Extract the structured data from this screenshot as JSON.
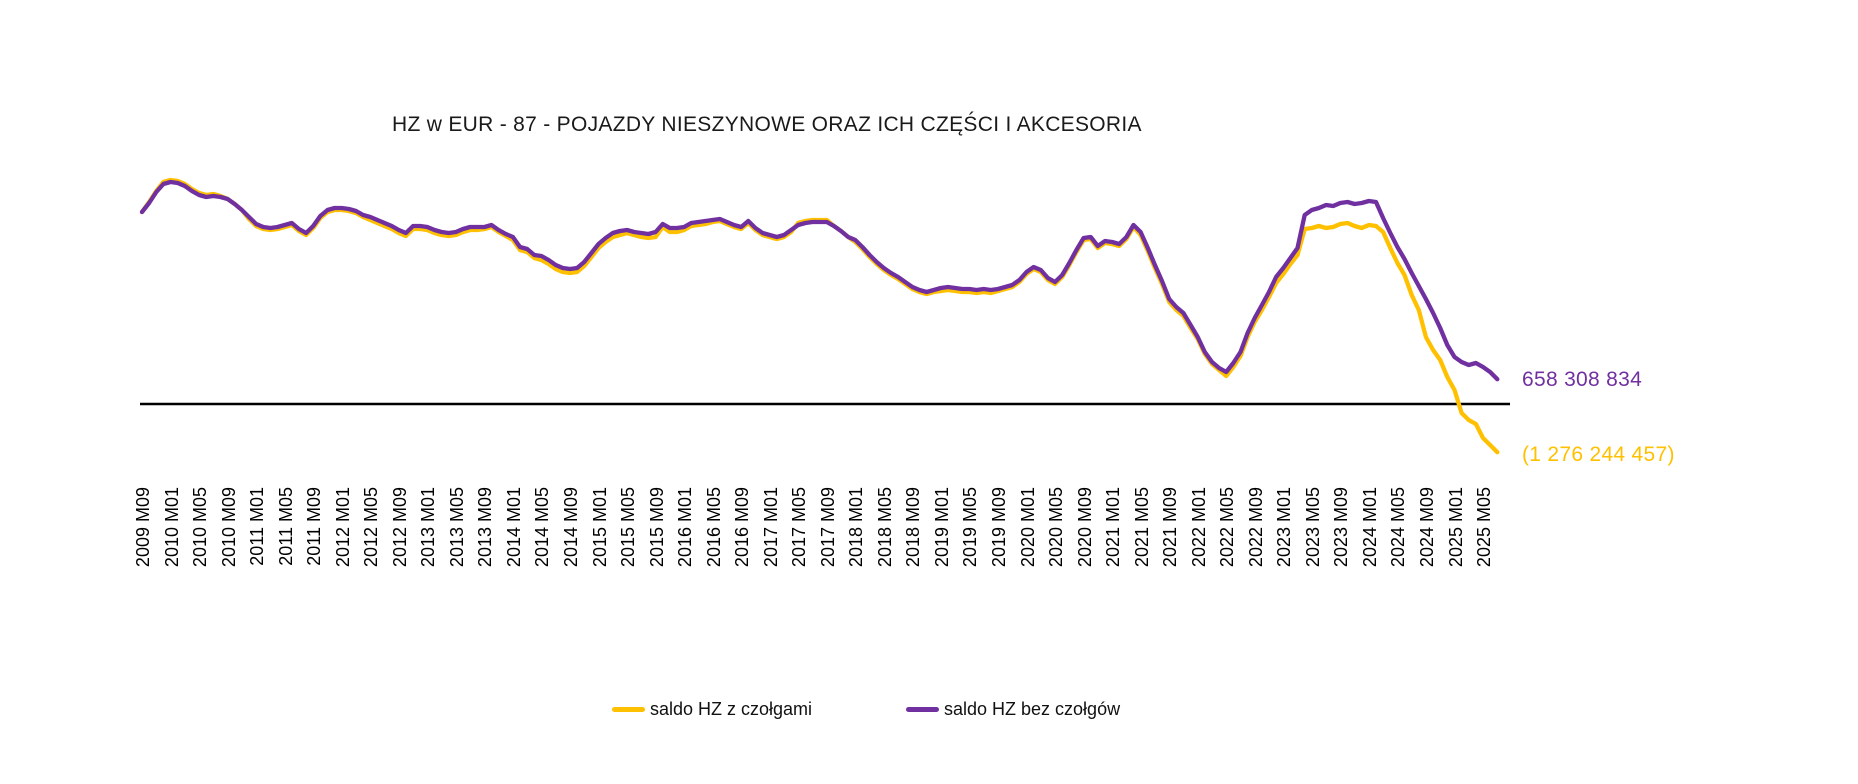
{
  "title": "HZ w EUR - 87 - POJAZDY NIESZYNOWE ORAZ ICH CZĘŚCI I AKCESORIA",
  "colors": {
    "with_tanks": "#FFC000",
    "without_tanks": "#7030A0",
    "baseline": "#000000",
    "background": "#FFFFFF"
  },
  "end_labels": {
    "without_tanks": "658 308 834",
    "with_tanks": "(1 276 244 457)"
  },
  "legend": [
    {
      "label": "saldo HZ z czołgami",
      "color": "#FFC000"
    },
    {
      "label": "saldo HZ bez czołgów",
      "color": "#7030A0"
    }
  ],
  "chart_data": {
    "type": "line",
    "title": "HZ w EUR - 87 - POJAZDY NIESZYNOWE ORAZ ICH CZĘŚCI I AKCESORIA",
    "unit": "EUR, series values in millions (estimated from plot); end-point labels exact in EUR",
    "frequency": "monthly",
    "start_period": "2009 M09",
    "end_period": "2025 M07",
    "baseline": 0,
    "grid": false,
    "legend_position": "bottom",
    "x_tick_labels": [
      "2009 M09",
      "2010 M01",
      "2010 M05",
      "2010 M09",
      "2011 M01",
      "2011 M05",
      "2011 M09",
      "2012 M01",
      "2012 M05",
      "2012 M09",
      "2013 M01",
      "2013 M05",
      "2013 M09",
      "2014 M01",
      "2014 M05",
      "2014 M09",
      "2015 M01",
      "2015 M05",
      "2015 M09",
      "2016 M01",
      "2016 M05",
      "2016 M09",
      "2017 M01",
      "2017 M05",
      "2017 M09",
      "2018 M01",
      "2018 M05",
      "2018 M09",
      "2019 M01",
      "2019 M05",
      "2019 M09",
      "2020 M01",
      "2020 M05",
      "2020 M09",
      "2021 M01",
      "2021 M05",
      "2021 M09",
      "2022 M01",
      "2022 M05",
      "2022 M09",
      "2023 M01",
      "2023 M05",
      "2023 M09",
      "2024 M01",
      "2024 M05",
      "2024 M09",
      "2025 M01",
      "2025 M05"
    ],
    "series": [
      {
        "name": "saldo HZ z czołgami",
        "color": "#FFC000",
        "end_value_label": "(1 276 244 457)",
        "end_value_eur": -1276244457,
        "values": [
          5088,
          5353,
          5645,
          5883,
          5936,
          5910,
          5830,
          5698,
          5592,
          5539,
          5565,
          5512,
          5433,
          5300,
          5141,
          4903,
          4717,
          4638,
          4611,
          4638,
          4691,
          4744,
          4585,
          4479,
          4664,
          4929,
          5088,
          5141,
          5141,
          5115,
          5062,
          4956,
          4876,
          4797,
          4717,
          4638,
          4532,
          4452,
          4638,
          4638,
          4611,
          4532,
          4479,
          4452,
          4479,
          4558,
          4611,
          4611,
          4638,
          4691,
          4558,
          4452,
          4346,
          4081,
          4028,
          3869,
          3816,
          3710,
          3578,
          3498,
          3472,
          3498,
          3657,
          3896,
          4134,
          4293,
          4426,
          4479,
          4532,
          4479,
          4426,
          4399,
          4426,
          4691,
          4558,
          4558,
          4611,
          4717,
          4744,
          4770,
          4823,
          4850,
          4770,
          4691,
          4638,
          4797,
          4611,
          4479,
          4426,
          4373,
          4426,
          4558,
          4797,
          4850,
          4876,
          4876,
          4876,
          4717,
          4585,
          4426,
          4293,
          4108,
          3896,
          3710,
          3551,
          3419,
          3313,
          3180,
          3048,
          2968,
          2915,
          2968,
          2995,
          3021,
          2995,
          2968,
          2968,
          2942,
          2968,
          2942,
          2995,
          3048,
          3101,
          3233,
          3445,
          3578,
          3498,
          3286,
          3180,
          3366,
          3684,
          4028,
          4346,
          4373,
          4134,
          4267,
          4240,
          4187,
          4373,
          4691,
          4479,
          4055,
          3604,
          3180,
          2703,
          2491,
          2332,
          2014,
          1723,
          1325,
          1060,
          901,
          742,
          981,
          1272,
          1776,
          2173,
          2491,
          2836,
          3207,
          3445,
          3710,
          3949,
          4638,
          4664,
          4717,
          4664,
          4691,
          4770,
          4797,
          4717,
          4664,
          4744,
          4717,
          4558,
          4134,
          3737,
          3419,
          2889,
          2491,
          1776,
          1431,
          1166,
          716,
          371,
          -239,
          -424,
          -530,
          -901,
          -1087,
          -1276.2
        ]
      },
      {
        "name": "saldo HZ bez czołgów",
        "color": "#7030A0",
        "end_value_label": "658 308 834",
        "end_value_eur": 658308834,
        "values": [
          5088,
          5327,
          5618,
          5830,
          5883,
          5857,
          5777,
          5645,
          5539,
          5486,
          5512,
          5486,
          5433,
          5300,
          5141,
          4956,
          4770,
          4691,
          4664,
          4691,
          4744,
          4797,
          4638,
          4532,
          4717,
          4982,
          5141,
          5194,
          5194,
          5168,
          5115,
          5009,
          4956,
          4876,
          4797,
          4717,
          4611,
          4532,
          4717,
          4717,
          4691,
          4611,
          4558,
          4532,
          4558,
          4638,
          4691,
          4691,
          4691,
          4744,
          4611,
          4505,
          4426,
          4161,
          4108,
          3949,
          3922,
          3816,
          3684,
          3604,
          3578,
          3604,
          3763,
          4002,
          4240,
          4399,
          4532,
          4585,
          4611,
          4558,
          4532,
          4505,
          4558,
          4770,
          4664,
          4664,
          4691,
          4797,
          4823,
          4850,
          4876,
          4903,
          4823,
          4744,
          4691,
          4850,
          4664,
          4532,
          4479,
          4426,
          4479,
          4611,
          4744,
          4797,
          4823,
          4823,
          4823,
          4717,
          4585,
          4426,
          4346,
          4161,
          3949,
          3763,
          3604,
          3472,
          3366,
          3233,
          3101,
          3021,
          2968,
          3021,
          3074,
          3101,
          3074,
          3048,
          3048,
          3021,
          3048,
          3021,
          3048,
          3101,
          3154,
          3286,
          3498,
          3631,
          3551,
          3339,
          3233,
          3419,
          3737,
          4081,
          4399,
          4426,
          4187,
          4320,
          4293,
          4240,
          4426,
          4744,
          4558,
          4134,
          3684,
          3260,
          2783,
          2571,
          2412,
          2094,
          1776,
          1378,
          1113,
          954,
          848,
          1087,
          1378,
          1882,
          2279,
          2624,
          2968,
          3366,
          3604,
          3869,
          4134,
          5009,
          5141,
          5194,
          5274,
          5247,
          5327,
          5353,
          5300,
          5327,
          5380,
          5353,
          4929,
          4532,
          4161,
          3843,
          3472,
          3127,
          2783,
          2412,
          2014,
          1564,
          1246,
          1113,
          1034,
          1087,
          981,
          848,
          658.3
        ]
      }
    ]
  }
}
